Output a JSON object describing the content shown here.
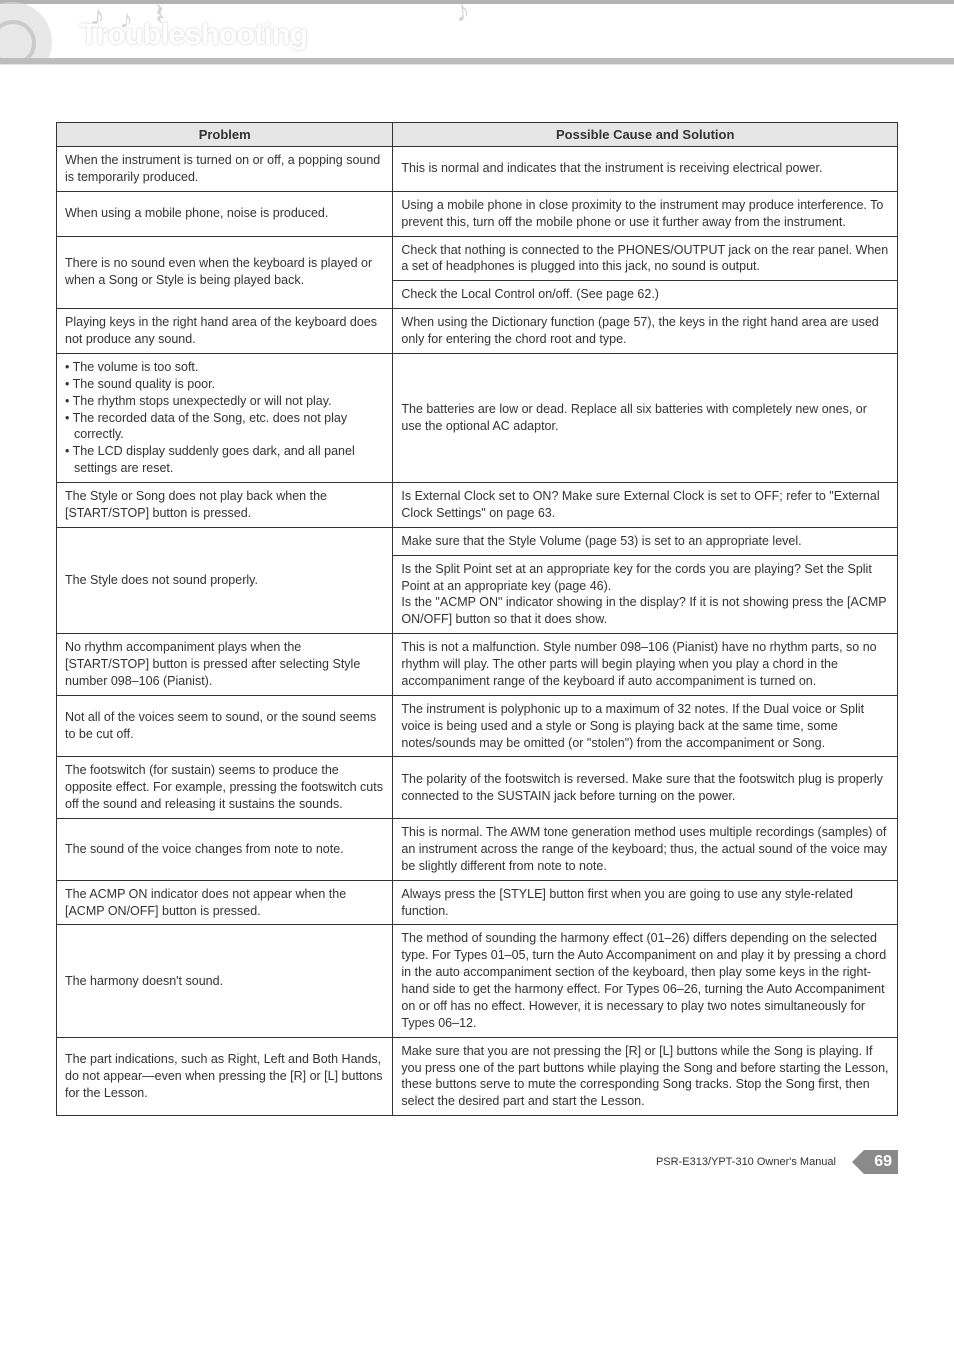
{
  "page": {
    "title": "Troubleshooting",
    "footer_model": "PSR-E313/YPT-310  Owner's Manual",
    "page_number": "69"
  },
  "table": {
    "headers": {
      "problem": "Problem",
      "solution": "Possible Cause and Solution"
    },
    "rows": [
      {
        "problem": "When the instrument is turned on or off, a popping sound is temporarily produced.",
        "solutions": [
          "This is normal and indicates that the instrument is receiving electrical power."
        ]
      },
      {
        "problem": "When using a mobile phone, noise is produced.",
        "solutions": [
          "Using a mobile phone in close proximity to the instrument may produce interference. To prevent this, turn off the mobile phone or use it further away from the instrument."
        ]
      },
      {
        "problem": "There is no sound even when the keyboard is played or when a Song or Style is being played back.",
        "solutions": [
          "Check that nothing is connected to the PHONES/OUTPUT jack on the rear panel. When a set of headphones is plugged into this jack, no sound is output.",
          "Check the Local Control on/off. (See page 62.)"
        ]
      },
      {
        "problem": "Playing keys in the right hand area of the keyboard does not produce any sound.",
        "solutions": [
          "When using the Dictionary function (page 57), the keys in the right hand area are used only for entering the chord root and type."
        ]
      },
      {
        "problem_bullets": [
          "The volume is too soft.",
          "The sound quality is poor.",
          "The rhythm stops unexpectedly or will not play.",
          "The recorded data of the Song, etc. does not play correctly.",
          "The LCD display suddenly goes dark, and all panel settings are reset."
        ],
        "solutions": [
          "The batteries are low or dead. Replace all six batteries with completely new ones, or use the optional AC adaptor."
        ]
      },
      {
        "problem": "The Style or Song does not play back when the [START/STOP] button is pressed.",
        "solutions": [
          "Is External Clock set to ON? Make sure External Clock is set to OFF; refer to \"External Clock Settings\" on page 63."
        ]
      },
      {
        "problem": "The Style does not sound properly.",
        "solutions": [
          "Make sure that the Style Volume (page 53) is set to an appropriate level.",
          "Is the Split Point set at an appropriate key for the cords you are playing? Set the Split Point at an appropriate key (page 46).\nIs the \"ACMP ON\" indicator showing in the display? If it is not showing press the [ACMP ON/OFF] button so that it does show."
        ]
      },
      {
        "problem": "No rhythm accompaniment plays when the [START/STOP] button is pressed after selecting Style number 098–106 (Pianist).",
        "solutions": [
          "This is not a malfunction. Style number 098–106 (Pianist) have no rhythm parts, so no rhythm will play. The other parts will begin playing when you play a chord in the accompaniment range of the keyboard if auto accompaniment is turned on."
        ]
      },
      {
        "problem": "Not all of the voices seem to sound, or the sound seems to be cut off.",
        "solutions": [
          "The instrument is polyphonic up to a maximum of 32 notes. If the Dual voice or Split voice is being used and a style or Song is playing back at the same time, some notes/sounds may be omitted (or \"stolen\") from the accompaniment or Song."
        ]
      },
      {
        "problem": "The footswitch (for sustain) seems to produce the opposite effect. For example, pressing the footswitch cuts off the sound and releasing it sustains the sounds.",
        "solutions": [
          "The polarity of the footswitch is reversed. Make sure that the footswitch plug is properly connected to the SUSTAIN jack before turning on the power."
        ]
      },
      {
        "problem": "The sound of the voice changes from note to note.",
        "solutions": [
          "This is normal. The AWM tone generation method uses multiple recordings (samples) of an instrument across the range of the keyboard; thus, the actual sound of the voice may be slightly different from note to note."
        ]
      },
      {
        "problem": "The ACMP ON indicator does not appear when the [ACMP ON/OFF] button is pressed.",
        "solutions": [
          "Always press the [STYLE] button first when you are going to use any style-related function."
        ]
      },
      {
        "problem": "The harmony doesn't sound.",
        "solutions": [
          "The method of sounding the harmony effect (01–26) differs depending on the selected type. For Types 01–05, turn the Auto Accompaniment on and play it by pressing a chord in the auto accompaniment section of the keyboard, then play some keys in the right-hand side to get the harmony effect. For Types 06–26, turning the Auto Accompaniment on or off has no effect. However, it is necessary to play two notes simultaneously for Types 06–12."
        ]
      },
      {
        "problem": "The part indications, such as Right, Left and Both Hands, do not appear—even when pressing the [R] or [L] buttons for the Lesson.",
        "solutions": [
          "Make sure that you are not pressing the [R] or [L] buttons while the Song is playing. If you press one of the part buttons while playing the Song and before starting the Lesson, these buttons serve to mute the corresponding Song tracks. Stop the Song first, then select the desired part and start the Lesson."
        ]
      }
    ]
  },
  "style": {
    "header_bg": "#bdbdbd",
    "title_color": "#ffffff",
    "table_border": "#333333",
    "th_bg": "#e6e6e6",
    "badge_bg": "#8a8a8a"
  }
}
